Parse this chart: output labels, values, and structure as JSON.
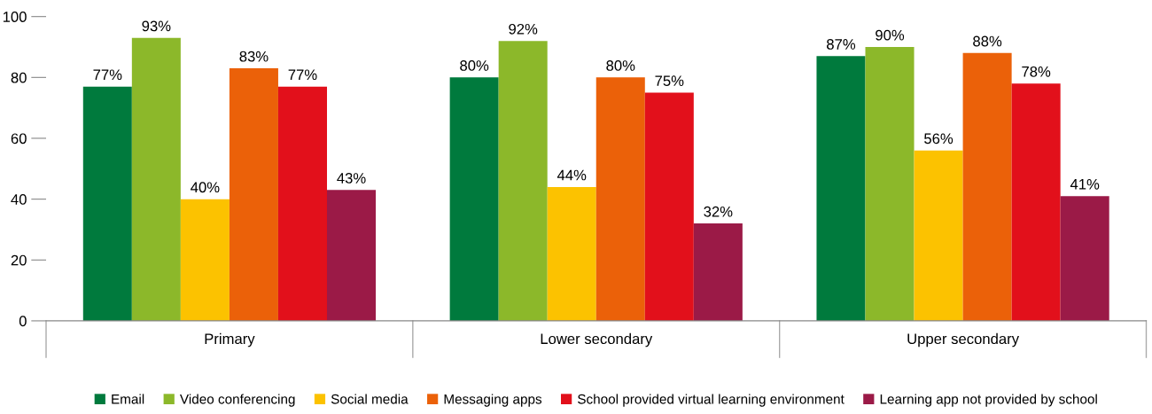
{
  "chart_data": {
    "type": "bar",
    "categories": [
      "Primary",
      "Lower secondary",
      "Upper secondary"
    ],
    "series": [
      {
        "name": "Email",
        "color": "#007a3d",
        "values": [
          77,
          80,
          87
        ],
        "value_labels": [
          "77%",
          "80%",
          "87%"
        ]
      },
      {
        "name": "Video conferencing",
        "color": "#8cb82a",
        "values": [
          93,
          92,
          90
        ],
        "value_labels": [
          "93%",
          "92%",
          "90%"
        ]
      },
      {
        "name": "Social media",
        "color": "#fcc200",
        "values": [
          40,
          44,
          56
        ],
        "value_labels": [
          "40%",
          "44%",
          "56%"
        ]
      },
      {
        "name": "Messaging apps",
        "color": "#eb6109",
        "values": [
          83,
          80,
          88
        ],
        "value_labels": [
          "83%",
          "80%",
          "88%"
        ]
      },
      {
        "name": "School provided virtual learning environment",
        "color": "#e2101b",
        "values": [
          77,
          75,
          78
        ],
        "value_labels": [
          "77%",
          "75%",
          "78%"
        ]
      },
      {
        "name": "Learning app not provided by school",
        "color": "#9b1a47",
        "values": [
          43,
          32,
          41
        ],
        "value_labels": [
          "43%",
          "32%",
          "41%"
        ]
      }
    ],
    "ylim": [
      0,
      100
    ],
    "yticks": [
      0,
      20,
      40,
      60,
      80,
      100
    ],
    "grid": false,
    "legend": "bottom"
  }
}
